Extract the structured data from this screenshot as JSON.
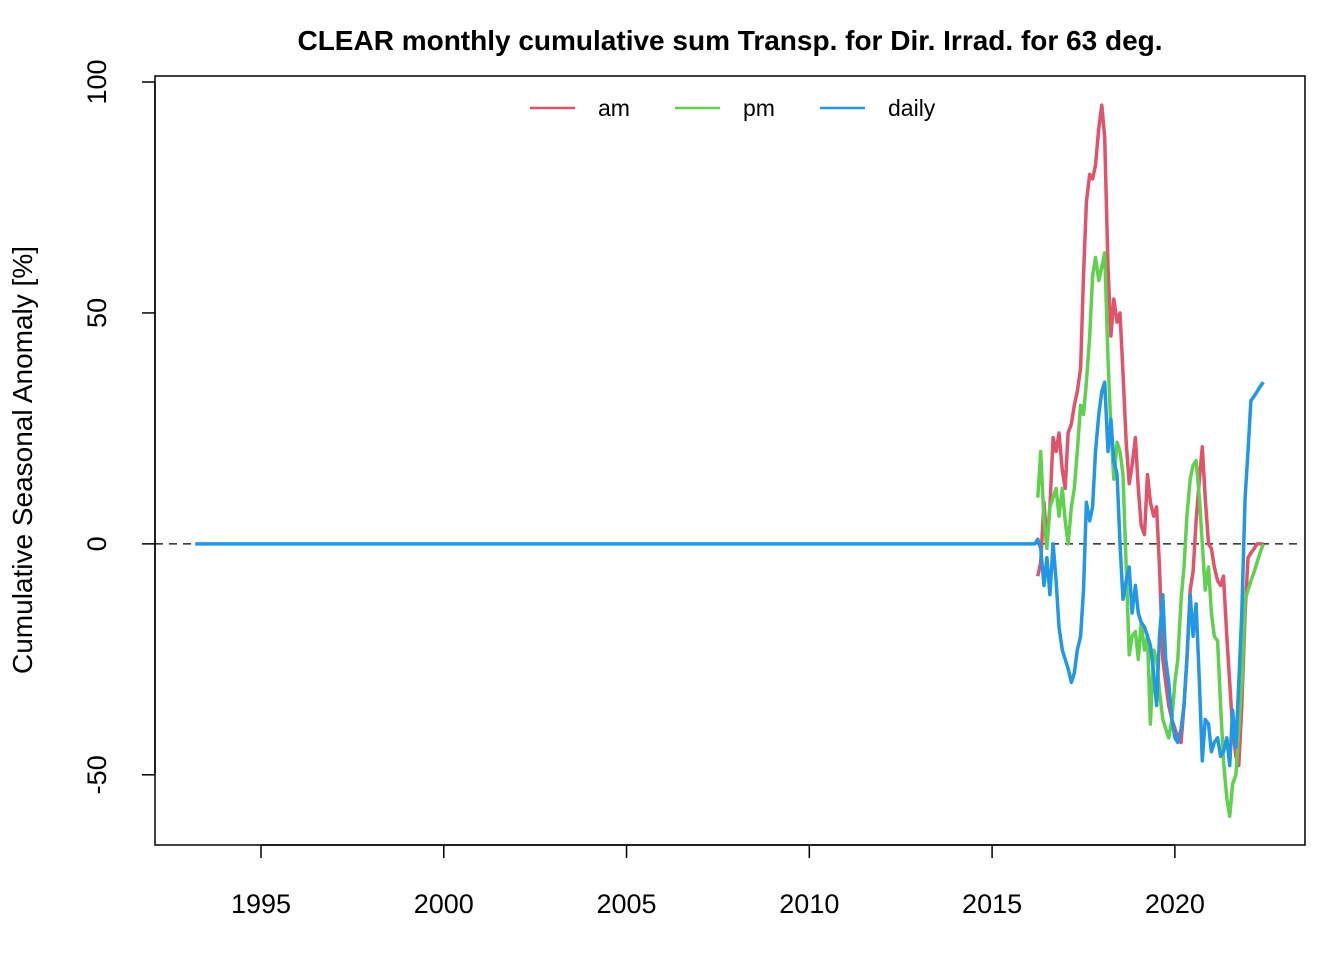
{
  "chart_data": {
    "type": "line",
    "title": "CLEAR monthly cumulative sum  Transp. for Dir. Irrad. for 63 deg.",
    "y_label": "Cumulative Seasonal Anomaly [%]",
    "x": [
      2016.25,
      2016.33,
      2016.42,
      2016.5,
      2016.58,
      2016.67,
      2016.75,
      2016.83,
      2016.92,
      2017,
      2017.08,
      2017.17,
      2017.25,
      2017.33,
      2017.42,
      2017.5,
      2017.58,
      2017.67,
      2017.75,
      2017.83,
      2017.92,
      2018,
      2018.08,
      2018.17,
      2018.25,
      2018.33,
      2018.42,
      2018.5,
      2018.58,
      2018.67,
      2018.75,
      2018.83,
      2018.92,
      2019,
      2019.08,
      2019.17,
      2019.25,
      2019.33,
      2019.42,
      2019.5,
      2019.58,
      2019.67,
      2019.75,
      2019.83,
      2019.92,
      2020,
      2020.08,
      2020.17,
      2020.25,
      2020.33,
      2020.42,
      2020.5,
      2020.58,
      2020.67,
      2020.75,
      2020.83,
      2020.92,
      2021,
      2021.08,
      2021.17,
      2021.25,
      2021.33,
      2021.42,
      2021.5,
      2021.58,
      2021.67,
      2021.75,
      2021.83,
      2021.92,
      2022,
      2022.08,
      2022.17,
      2022.25,
      2022.33,
      2022.42
    ],
    "series": [
      {
        "name": "am",
        "color": "#DF536B",
        "values": [
          -7,
          -4,
          9,
          0,
          8,
          23,
          20,
          24,
          16,
          12,
          24,
          26,
          30,
          33,
          38,
          58,
          74,
          80,
          79,
          82,
          90,
          95,
          88,
          60,
          45,
          53,
          48,
          50,
          37,
          22,
          13,
          17,
          23,
          12,
          4,
          2,
          15,
          9,
          6,
          8,
          -5,
          -25,
          -30,
          -35,
          -38,
          -40,
          -42,
          -43,
          -35,
          -25,
          -10,
          -6,
          5,
          14,
          21,
          10,
          0,
          -1,
          -5,
          -8,
          -9,
          -7,
          -20,
          -30,
          -40,
          -46,
          -48,
          -35,
          -15,
          -3,
          -2,
          -1,
          0,
          0,
          0
        ]
      },
      {
        "name": "pm",
        "color": "#61D04F",
        "values": [
          10,
          20,
          5,
          -1,
          8,
          10,
          12,
          6,
          12,
          5,
          0,
          8,
          12,
          20,
          30,
          28,
          35,
          45,
          58,
          62,
          57,
          60,
          63,
          40,
          25,
          14,
          22,
          20,
          15,
          -5,
          -24,
          -20,
          -19,
          -25,
          -17,
          -23,
          -20,
          -39,
          -23,
          -25,
          -32,
          -38,
          -40,
          -42,
          -38,
          -30,
          -25,
          -12,
          -5,
          6,
          14,
          17,
          18,
          10,
          0,
          -10,
          -5,
          -15,
          -20,
          -21,
          -35,
          -47,
          -55,
          -59,
          -52,
          -50,
          -40,
          -30,
          -12,
          -10,
          -8,
          -6,
          -4,
          -2,
          0
        ]
      },
      {
        "name": "daily",
        "color": "#2297E6",
        "x": [
          1993.2,
          2016.17,
          2016.25,
          2016.33,
          2016.42,
          2016.5,
          2016.58,
          2016.67,
          2016.75,
          2016.83,
          2016.92,
          2017,
          2017.08,
          2017.17,
          2017.25,
          2017.33,
          2017.42,
          2017.5,
          2017.58,
          2017.67,
          2017.75,
          2017.83,
          2017.92,
          2018,
          2018.08,
          2018.17,
          2018.25,
          2018.33,
          2018.42,
          2018.5,
          2018.58,
          2018.67,
          2018.75,
          2018.83,
          2018.92,
          2019,
          2019.08,
          2019.17,
          2019.25,
          2019.33,
          2019.42,
          2019.5,
          2019.58,
          2019.67,
          2019.75,
          2019.83,
          2019.92,
          2020,
          2020.08,
          2020.17,
          2020.25,
          2020.33,
          2020.42,
          2020.5,
          2020.58,
          2020.67,
          2020.75,
          2020.83,
          2020.92,
          2021,
          2021.08,
          2021.17,
          2021.25,
          2021.33,
          2021.42,
          2021.5,
          2021.58,
          2021.67,
          2021.75,
          2021.83,
          2021.92,
          2022,
          2022.08,
          2022.17,
          2022.25,
          2022.33,
          2022.42
        ],
        "values": [
          0,
          0,
          1,
          -1,
          -9,
          -3,
          -11,
          0,
          -8,
          -18,
          -23,
          -25,
          -27,
          -30,
          -28,
          -23,
          -20,
          -10,
          9,
          5,
          8,
          20,
          28,
          33,
          35,
          20,
          27,
          18,
          15,
          0,
          -12,
          -8,
          -5,
          -15,
          -9,
          -15,
          -17,
          -18,
          -20,
          -22,
          -28,
          -35,
          -20,
          -11,
          -25,
          -30,
          -38,
          -42,
          -43,
          -40,
          -35,
          -25,
          -11,
          -20,
          -13,
          -30,
          -47,
          -38,
          -39,
          -45,
          -43,
          -42,
          -46,
          -45,
          -42,
          -48,
          -36,
          -44,
          -30,
          -15,
          10,
          20,
          31,
          32,
          33,
          34,
          35
        ]
      }
    ],
    "hline": 0,
    "xlim": [
      1992.1,
      2023.56
    ],
    "ylim": [
      -65.2,
      101.3
    ],
    "xticks": [
      1995,
      2000,
      2005,
      2010,
      2015,
      2020
    ],
    "yticks": [
      -50,
      0,
      50,
      100
    ],
    "legend": "top"
  }
}
